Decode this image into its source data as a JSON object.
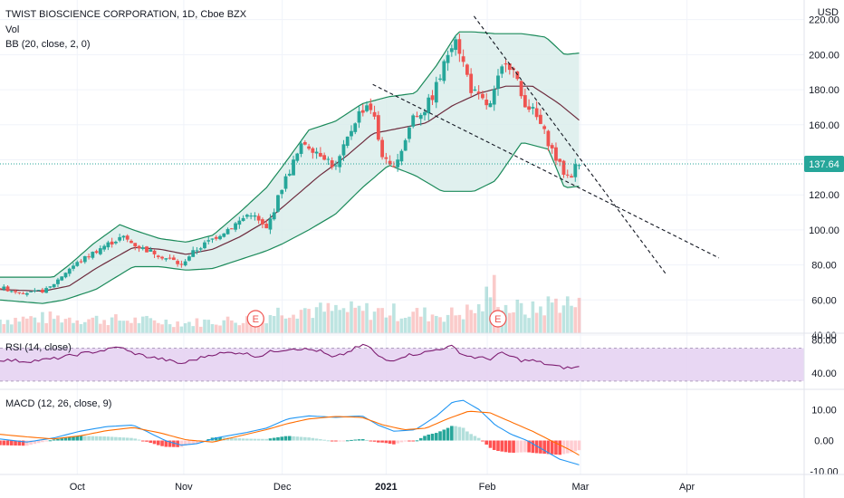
{
  "header": {
    "title": "TWIST BIOSCIENCE CORPORATION, 1D, Cboe BZX",
    "vol_label": "Vol",
    "bb_label": "BB (20, close, 2, 0)",
    "currency": "USD"
  },
  "rsi_panel": {
    "label": "RSI (14, close)",
    "ticks": [
      "80.00",
      "40.00"
    ],
    "tick_values": [
      80,
      40
    ],
    "band": [
      30,
      70
    ]
  },
  "macd_panel": {
    "label": "MACD (12, 26, close, 9)",
    "ticks": [
      "10.00",
      "0.00",
      "-10.00"
    ],
    "tick_values": [
      10,
      0,
      -10
    ]
  },
  "price_label": {
    "value": "137.64",
    "price": 137.64
  },
  "earnings": [
    {
      "label": "E",
      "day": 96
    },
    {
      "label": "E",
      "day": 187
    }
  ],
  "colors": {
    "up": "#26a69a",
    "down": "#ef5350",
    "bb_fill": "#d8ecea",
    "bb_band": "#1b8a5a",
    "bb_basis": "#6d2b3d",
    "rsi_line": "#7e1e72",
    "rsi_band": "#e6d3f2",
    "macd_line": "#2196f3",
    "signal_line": "#ff6d00",
    "price_tag": "#26a69a",
    "grid": "#f0f3fa",
    "dotted": "#26a69a"
  },
  "chart_data": {
    "type": "candlestick",
    "title": "TWIST BIOSCIENCE CORPORATION, 1D, Cboe BZX",
    "x_axis": {
      "labels": [
        "Oct",
        "Nov",
        "Dec",
        "2021",
        "Feb",
        "Mar",
        "Apr"
      ],
      "label_days": [
        29,
        69,
        106,
        145,
        183,
        218,
        258
      ],
      "day_range": [
        0,
        302
      ]
    },
    "price_axis": {
      "ticks": [
        "220.00",
        "200.00",
        "180.00",
        "160.00",
        "140.00",
        "120.00",
        "100.00",
        "80.00",
        "60.00",
        "40.00"
      ],
      "tick_values": [
        220,
        200,
        180,
        160,
        140,
        120,
        100,
        80,
        60,
        40
      ],
      "range": [
        40,
        225
      ]
    },
    "price_anchors": [
      [
        0,
        67
      ],
      [
        6,
        65
      ],
      [
        12,
        64
      ],
      [
        18,
        66
      ],
      [
        22,
        72
      ],
      [
        26,
        78
      ],
      [
        30,
        82
      ],
      [
        34,
        86
      ],
      [
        38,
        90
      ],
      [
        42,
        93
      ],
      [
        46,
        96
      ],
      [
        50,
        92
      ],
      [
        54,
        89
      ],
      [
        58,
        87
      ],
      [
        62,
        84
      ],
      [
        66,
        82
      ],
      [
        68,
        79
      ],
      [
        70,
        84
      ],
      [
        74,
        89
      ],
      [
        78,
        93
      ],
      [
        82,
        97
      ],
      [
        86,
        101
      ],
      [
        90,
        105
      ],
      [
        94,
        110
      ],
      [
        97,
        105
      ],
      [
        100,
        100
      ],
      [
        103,
        112
      ],
      [
        106,
        125
      ],
      [
        110,
        138
      ],
      [
        114,
        150
      ],
      [
        118,
        146
      ],
      [
        122,
        142
      ],
      [
        126,
        135
      ],
      [
        130,
        150
      ],
      [
        134,
        165
      ],
      [
        138,
        172
      ],
      [
        140,
        168
      ],
      [
        143,
        145
      ],
      [
        146,
        135
      ],
      [
        149,
        140
      ],
      [
        152,
        150
      ],
      [
        155,
        165
      ],
      [
        159,
        168
      ],
      [
        162,
        175
      ],
      [
        166,
        190
      ],
      [
        169,
        205
      ],
      [
        171,
        212
      ],
      [
        173,
        200
      ],
      [
        177,
        180
      ],
      [
        180,
        175
      ],
      [
        184,
        170
      ],
      [
        187,
        185
      ],
      [
        190,
        198
      ],
      [
        193,
        190
      ],
      [
        196,
        175
      ],
      [
        200,
        168
      ],
      [
        203,
        160
      ],
      [
        206,
        150
      ],
      [
        209,
        140
      ],
      [
        212,
        132
      ],
      [
        214,
        130
      ],
      [
        216,
        136
      ],
      [
        218,
        137.6
      ]
    ],
    "bb_upper_anchors": [
      [
        0,
        73
      ],
      [
        20,
        73
      ],
      [
        26,
        80
      ],
      [
        35,
        92
      ],
      [
        45,
        103
      ],
      [
        50,
        100
      ],
      [
        60,
        95
      ],
      [
        70,
        93
      ],
      [
        80,
        97
      ],
      [
        90,
        110
      ],
      [
        100,
        124
      ],
      [
        106,
        136
      ],
      [
        116,
        157
      ],
      [
        126,
        162
      ],
      [
        136,
        172
      ],
      [
        146,
        176
      ],
      [
        156,
        178
      ],
      [
        164,
        194
      ],
      [
        172,
        213
      ],
      [
        178,
        213
      ],
      [
        186,
        212
      ],
      [
        196,
        212
      ],
      [
        205,
        210
      ],
      [
        212,
        200
      ],
      [
        218,
        201
      ]
    ],
    "bb_lower_anchors": [
      [
        0,
        60
      ],
      [
        16,
        58
      ],
      [
        24,
        60
      ],
      [
        36,
        66
      ],
      [
        50,
        79
      ],
      [
        60,
        79
      ],
      [
        70,
        77
      ],
      [
        80,
        78
      ],
      [
        90,
        83
      ],
      [
        100,
        88
      ],
      [
        106,
        92
      ],
      [
        116,
        100
      ],
      [
        126,
        109
      ],
      [
        136,
        124
      ],
      [
        146,
        137
      ],
      [
        156,
        131
      ],
      [
        166,
        122
      ],
      [
        178,
        122
      ],
      [
        186,
        128
      ],
      [
        196,
        150
      ],
      [
        206,
        146
      ],
      [
        212,
        124
      ],
      [
        218,
        125
      ]
    ],
    "bb_basis_anchors": [
      [
        0,
        66
      ],
      [
        16,
        65
      ],
      [
        26,
        68
      ],
      [
        36,
        78
      ],
      [
        50,
        90
      ],
      [
        60,
        89
      ],
      [
        70,
        86
      ],
      [
        80,
        89
      ],
      [
        90,
        96
      ],
      [
        100,
        105
      ],
      [
        110,
        118
      ],
      [
        120,
        131
      ],
      [
        130,
        142
      ],
      [
        140,
        155
      ],
      [
        150,
        158
      ],
      [
        160,
        161
      ],
      [
        170,
        171
      ],
      [
        180,
        178
      ],
      [
        190,
        182
      ],
      [
        200,
        182
      ],
      [
        210,
        172
      ],
      [
        218,
        162
      ]
    ],
    "projection_lines": [
      {
        "from": [
          140,
          183
        ],
        "to": [
          270,
          84
        ]
      },
      {
        "from": [
          178,
          222
        ],
        "to": [
          250,
          75
        ]
      }
    ],
    "volume_anchors": [
      [
        0,
        16
      ],
      [
        20,
        18
      ],
      [
        40,
        16
      ],
      [
        60,
        14
      ],
      [
        70,
        12
      ],
      [
        80,
        14
      ],
      [
        95,
        16
      ],
      [
        110,
        30
      ],
      [
        120,
        26
      ],
      [
        130,
        26
      ],
      [
        140,
        26
      ],
      [
        150,
        24
      ],
      [
        160,
        22
      ],
      [
        170,
        22
      ],
      [
        180,
        28
      ],
      [
        186,
        55
      ],
      [
        190,
        30
      ],
      [
        200,
        26
      ],
      [
        210,
        38
      ],
      [
        218,
        30
      ]
    ],
    "rsi_anchors": [
      [
        0,
        56
      ],
      [
        10,
        54
      ],
      [
        20,
        57
      ],
      [
        30,
        63
      ],
      [
        40,
        68
      ],
      [
        45,
        72
      ],
      [
        48,
        66
      ],
      [
        55,
        60
      ],
      [
        62,
        56
      ],
      [
        68,
        51
      ],
      [
        72,
        55
      ],
      [
        80,
        63
      ],
      [
        90,
        65
      ],
      [
        97,
        60
      ],
      [
        102,
        66
      ],
      [
        110,
        70
      ],
      [
        120,
        67
      ],
      [
        125,
        58
      ],
      [
        130,
        64
      ],
      [
        134,
        71
      ],
      [
        138,
        74
      ],
      [
        142,
        60
      ],
      [
        146,
        54
      ],
      [
        152,
        61
      ],
      [
        160,
        65
      ],
      [
        166,
        70
      ],
      [
        170,
        72
      ],
      [
        174,
        62
      ],
      [
        178,
        59
      ],
      [
        184,
        57
      ],
      [
        188,
        64
      ],
      [
        192,
        60
      ],
      [
        196,
        55
      ],
      [
        200,
        55
      ],
      [
        206,
        50
      ],
      [
        210,
        47
      ],
      [
        214,
        46
      ],
      [
        218,
        47
      ]
    ],
    "macd_anchors": [
      [
        0,
        0.5
      ],
      [
        10,
        -0.5
      ],
      [
        20,
        0.8
      ],
      [
        30,
        3
      ],
      [
        40,
        4.5
      ],
      [
        50,
        5
      ],
      [
        55,
        3
      ],
      [
        62,
        0
      ],
      [
        68,
        -1.5
      ],
      [
        74,
        -1
      ],
      [
        82,
        1
      ],
      [
        92,
        2.5
      ],
      [
        100,
        4
      ],
      [
        108,
        7
      ],
      [
        116,
        8
      ],
      [
        126,
        7.5
      ],
      [
        136,
        8
      ],
      [
        142,
        5
      ],
      [
        148,
        3
      ],
      [
        156,
        3.5
      ],
      [
        164,
        8
      ],
      [
        170,
        12.5
      ],
      [
        174,
        13
      ],
      [
        180,
        10
      ],
      [
        186,
        5
      ],
      [
        192,
        2
      ],
      [
        198,
        0
      ],
      [
        204,
        -3
      ],
      [
        210,
        -6
      ],
      [
        218,
        -8
      ]
    ],
    "signal_anchors": [
      [
        0,
        2
      ],
      [
        10,
        1.2
      ],
      [
        20,
        0.5
      ],
      [
        30,
        1.5
      ],
      [
        40,
        3.2
      ],
      [
        50,
        4.2
      ],
      [
        60,
        2.5
      ],
      [
        70,
        0.2
      ],
      [
        80,
        -0.5
      ],
      [
        90,
        1.5
      ],
      [
        100,
        3.5
      ],
      [
        108,
        5.5
      ],
      [
        116,
        7
      ],
      [
        126,
        7.8
      ],
      [
        136,
        7.5
      ],
      [
        144,
        5
      ],
      [
        152,
        3.5
      ],
      [
        160,
        4
      ],
      [
        168,
        7
      ],
      [
        176,
        9.5
      ],
      [
        184,
        9
      ],
      [
        192,
        6
      ],
      [
        200,
        3
      ],
      [
        208,
        -0.5
      ],
      [
        214,
        -3
      ],
      [
        218,
        -5
      ]
    ]
  }
}
